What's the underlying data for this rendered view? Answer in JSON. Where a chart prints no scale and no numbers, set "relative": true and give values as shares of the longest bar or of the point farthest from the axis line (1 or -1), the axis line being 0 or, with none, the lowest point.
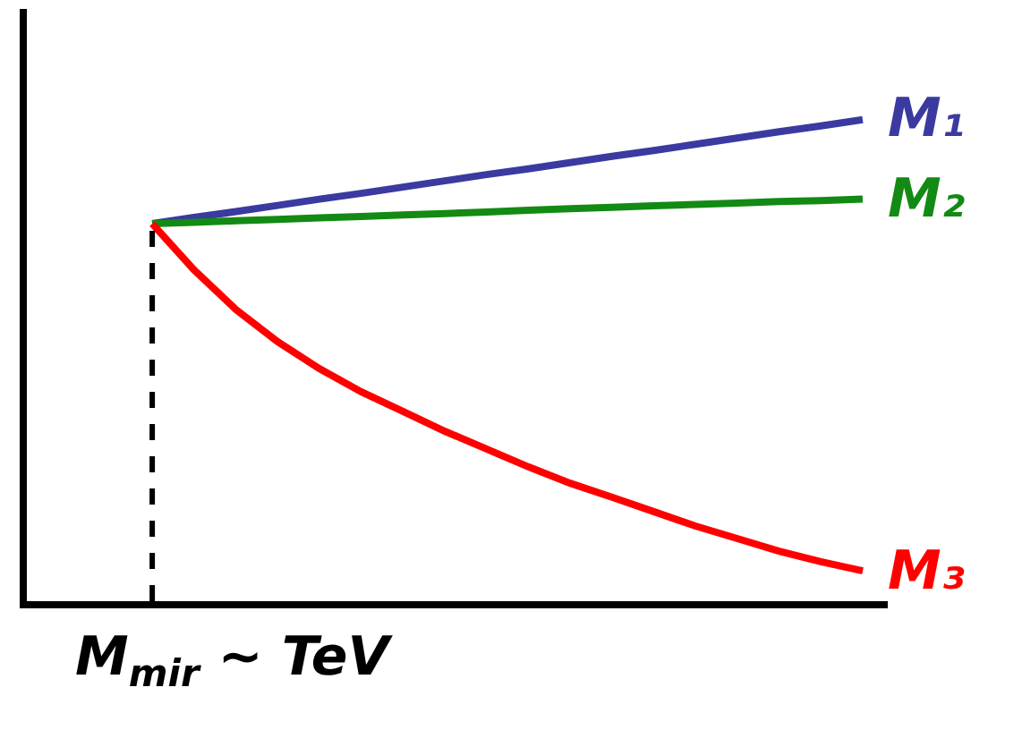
{
  "chart_data": {
    "type": "line",
    "relative": true,
    "categories": [
      null,
      null,
      null,
      null,
      null,
      null,
      null,
      null,
      null,
      null,
      null,
      null,
      null,
      null,
      null,
      null,
      null,
      null,
      null,
      null,
      null
    ],
    "series": [
      {
        "name": "M₁",
        "color": "#3a3aa0",
        "values": [
          null,
          null,
          null,
          0.784,
          0.797,
          0.809,
          0.822,
          0.835,
          0.847,
          0.86,
          0.873,
          0.886,
          0.898,
          0.911,
          0.924,
          0.936,
          0.949,
          0.962,
          0.975,
          0.987,
          1.0
        ]
      },
      {
        "name": "M₂",
        "color": "#138a13",
        "values": [
          null,
          null,
          null,
          0.784,
          0.787,
          0.79,
          0.793,
          0.796,
          0.799,
          0.802,
          0.805,
          0.808,
          0.812,
          0.815,
          0.818,
          0.821,
          0.824,
          0.827,
          0.83,
          0.832,
          0.835
        ]
      },
      {
        "name": "M₃",
        "color": "#ff0000",
        "values": [
          null,
          null,
          null,
          0.784,
          0.688,
          0.606,
          0.539,
          0.483,
          0.435,
          0.394,
          0.353,
          0.316,
          0.279,
          0.245,
          0.216,
          0.186,
          0.156,
          0.13,
          0.104,
          0.082,
          0.063
        ]
      }
    ],
    "ref_lines": [
      {
        "axis": "x",
        "label": "M$_{mir}$ ~ TeV",
        "line_style": "dashed",
        "color": "#000000"
      }
    ],
    "legend": false,
    "marker": "none",
    "line_style": "solid"
  }
}
